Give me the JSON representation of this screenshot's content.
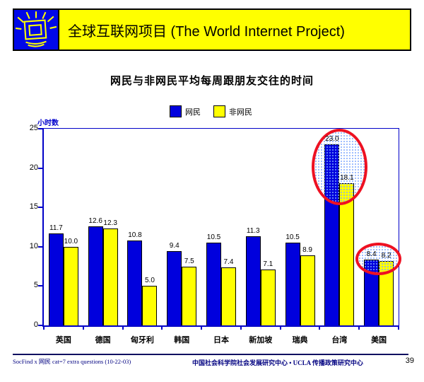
{
  "header": {
    "title": "全球互联网项目 (The World Internet Project)"
  },
  "slide": {
    "title": "网民与非网民平均每周跟朋友交往的时间"
  },
  "chart_data": {
    "type": "bar",
    "title": "网民与非网民平均每周跟朋友交往的时间",
    "xlabel": "",
    "ylabel": "小时数",
    "ylim": [
      0,
      25
    ],
    "yticks": [
      0,
      5,
      10,
      15,
      20,
      25
    ],
    "grid": false,
    "legend_position": "top",
    "categories": [
      "英国",
      "德国",
      "匈牙利",
      "韩国",
      "日本",
      "新加坡",
      "瑞典",
      "台湾",
      "美国"
    ],
    "series": [
      {
        "name": "网民",
        "color": "#0000DD",
        "values": [
          11.7,
          12.6,
          10.8,
          9.4,
          10.5,
          11.3,
          10.5,
          23.0,
          8.4
        ]
      },
      {
        "name": "非网民",
        "color": "#FFFF00",
        "values": [
          10.0,
          12.3,
          5.0,
          7.5,
          7.4,
          7.1,
          8.9,
          18.1,
          8.2
        ]
      }
    ],
    "annotations": [
      "red ellipse highlighting 台湾 bars (23.0 / 18.1)",
      "red ellipse highlighting 美国 bars (8.4 / 8.2)"
    ]
  },
  "footer": {
    "left": "SocFind x 网民 cat=7 extra questions (10-22-03)",
    "center": "中国社会科学院社会发展研究中心 • UCLA 传播政策研究中心",
    "page": "39"
  },
  "colors": {
    "banner_bg": "#FFFF00",
    "logo_bg": "#0008E8",
    "axis": "#0000C8",
    "bar_netizen": "#0000DD",
    "bar_non_netizen": "#FFFF00",
    "highlight_red": "#EE1122",
    "footer_text": "#000080"
  }
}
